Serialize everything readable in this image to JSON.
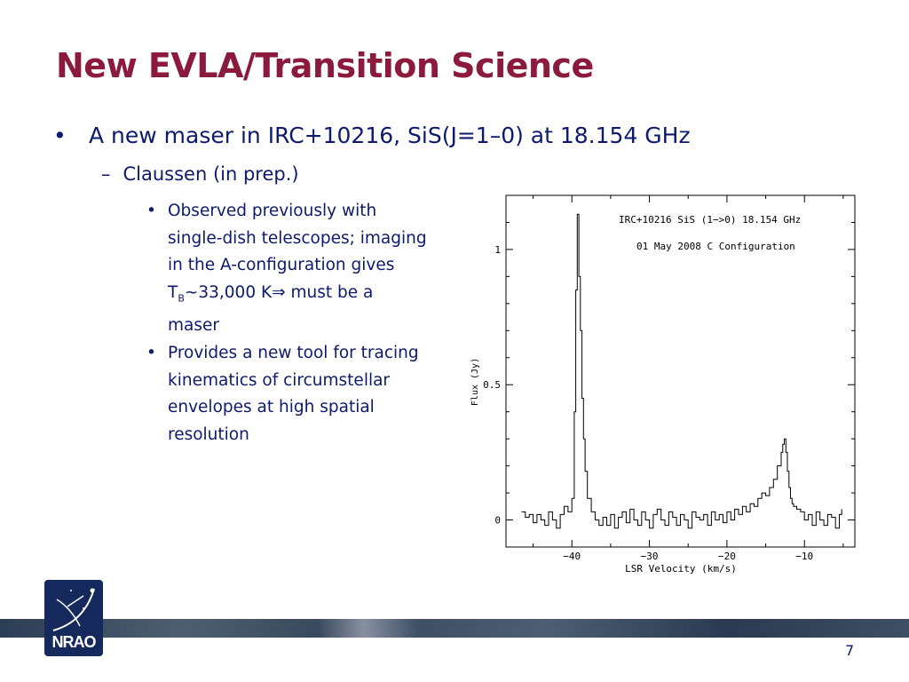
{
  "slide": {
    "title": "New EVLA/Transition Science",
    "page_number": "7",
    "logo_text": "NRAO",
    "accent_color": "#8b1a3c",
    "text_color": "#0d1a6e"
  },
  "bullets": {
    "level1": {
      "marker": "•",
      "text": "A new maser in IRC+10216, SiS(J=1–0) at 18.154 GHz"
    },
    "level2": {
      "marker": "–",
      "text": "Claussen (in prep.)"
    },
    "level3": [
      {
        "marker": "•",
        "lines": [
          "Observed previously with",
          "single-dish telescopes; imaging",
          "in the A-configuration gives"
        ],
        "tb_prefix": "T",
        "tb_sub": "B",
        "tb_suffix": "~33,000 K⇒ must be a",
        "tail": "maser"
      },
      {
        "marker": "•",
        "lines": [
          "Provides a new tool for tracing",
          "kinematics of circumstellar",
          "envelopes at high spatial",
          "resolution"
        ]
      }
    ]
  },
  "chart_data": {
    "type": "line",
    "annotations": [
      "IRC+10216 SiS (1−>0) 18.154 GHz",
      "01 May 2008 C Configuration"
    ],
    "xlabel": "LSR Velocity (km/s)",
    "ylabel": "Flux (Jy)",
    "xlim": [
      -48.5,
      -3.5
    ],
    "ylim": [
      -0.1,
      1.2
    ],
    "x_ticks": [
      -40,
      -30,
      -20,
      -10
    ],
    "x_tick_labels": [
      "−40",
      "−30",
      "−20",
      "−10"
    ],
    "y_ticks": [
      0,
      0.5,
      1
    ],
    "y_tick_labels": [
      "0",
      "0.5",
      "1"
    ],
    "series": [
      {
        "x": [
          -46.5,
          -46.0,
          -45.5,
          -45.0,
          -44.5,
          -44.0,
          -43.5,
          -43.0,
          -42.5,
          -42.0,
          -41.5,
          -41.0,
          -40.5,
          -40.0,
          -39.7,
          -39.5,
          -39.3,
          -39.1,
          -38.9,
          -38.7,
          -38.5,
          -38.3,
          -38.0,
          -37.5,
          -37.0,
          -36.5,
          -36.0,
          -35.5,
          -35.0,
          -34.5,
          -34.0,
          -33.5,
          -33.0,
          -32.5,
          -32.0,
          -31.5,
          -31.0,
          -30.5,
          -30.0,
          -29.5,
          -29.0,
          -28.5,
          -28.0,
          -27.5,
          -27.0,
          -26.5,
          -26.0,
          -25.5,
          -25.0,
          -24.5,
          -24.0,
          -23.5,
          -23.0,
          -22.5,
          -22.0,
          -21.5,
          -21.0,
          -20.5,
          -20.0,
          -19.5,
          -19.0,
          -18.5,
          -18.0,
          -17.5,
          -17.0,
          -16.5,
          -16.0,
          -15.5,
          -15.0,
          -14.5,
          -14.0,
          -13.5,
          -13.0,
          -12.8,
          -12.6,
          -12.4,
          -12.2,
          -12.0,
          -11.8,
          -11.6,
          -11.4,
          -11.0,
          -10.5,
          -10.0,
          -9.5,
          -9.0,
          -8.5,
          -8.0,
          -7.5,
          -7.0,
          -6.5,
          -6.0,
          -5.5,
          -5.2
        ],
        "y": [
          0.03,
          0.01,
          0.02,
          -0.01,
          0.02,
          0.0,
          -0.02,
          0.03,
          0.0,
          -0.03,
          0.02,
          0.05,
          0.03,
          0.08,
          0.4,
          0.85,
          1.13,
          0.9,
          0.7,
          0.45,
          0.3,
          0.18,
          0.08,
          0.03,
          0.0,
          -0.02,
          0.01,
          -0.02,
          0.02,
          -0.03,
          0.01,
          0.03,
          -0.01,
          0.04,
          0.0,
          -0.02,
          0.03,
          0.0,
          -0.03,
          0.02,
          0.04,
          0.0,
          -0.02,
          0.03,
          0.01,
          -0.02,
          0.02,
          0.0,
          -0.03,
          0.03,
          0.01,
          0.0,
          0.02,
          -0.02,
          0.03,
          0.0,
          0.02,
          -0.01,
          0.03,
          0.0,
          0.04,
          0.02,
          0.05,
          0.03,
          0.06,
          0.05,
          0.08,
          0.1,
          0.09,
          0.12,
          0.15,
          0.2,
          0.25,
          0.28,
          0.3,
          0.25,
          0.18,
          0.12,
          0.08,
          0.06,
          0.05,
          0.04,
          0.03,
          0.0,
          0.02,
          -0.02,
          0.03,
          0.0,
          -0.02,
          0.02,
          0.01,
          -0.03,
          0.02,
          0.04
        ]
      }
    ]
  }
}
